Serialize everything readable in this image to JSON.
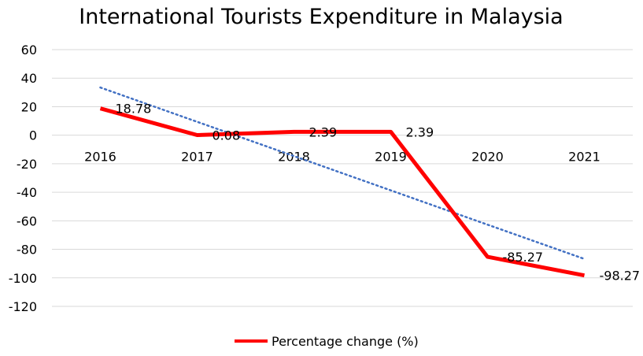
{
  "chart_data": {
    "type": "line",
    "title": "International Tourists Expenditure in Malaysia",
    "categories": [
      "2016",
      "2017",
      "2018",
      "2019",
      "2020",
      "2021"
    ],
    "series": [
      {
        "name": "Percentage change (%)",
        "values": [
          18.78,
          0.08,
          2.39,
          2.39,
          -85.27,
          -98.27
        ],
        "color": "#ff0000",
        "data_labels": [
          "18.78",
          "0.08",
          "2.39",
          "2.39",
          "-85.27",
          "-98.27"
        ]
      }
    ],
    "trendline": {
      "type": "linear",
      "color": "#4472c4",
      "style": "dotted"
    },
    "yticks": [
      "60",
      "40",
      "20",
      "0",
      "-20",
      "-40",
      "-60",
      "-80",
      "-100",
      "-120"
    ],
    "ylim": [
      -120,
      60
    ],
    "grid": true,
    "legend": {
      "position": "bottom",
      "label": "Percentage change (%)"
    },
    "xlabel": "",
    "ylabel": ""
  }
}
